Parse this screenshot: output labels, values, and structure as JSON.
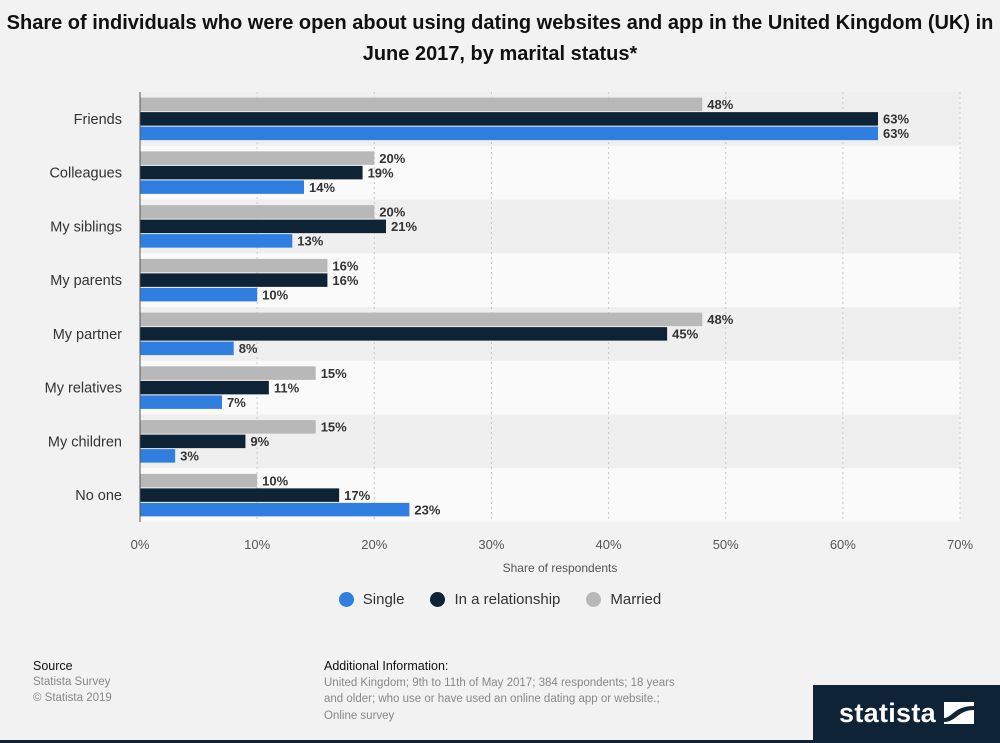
{
  "title": "Share of individuals who were open about using dating websites and app in the United Kingdom (UK) in June 2017, by marital status*",
  "chart_data": {
    "type": "bar",
    "orientation": "horizontal",
    "title": "Share of individuals who were open about using dating websites and app in the United Kingdom (UK) in June 2017, by marital status*",
    "xlabel": "Share of respondents",
    "ylabel": "",
    "xlim": [
      0,
      70
    ],
    "xticks": [
      "0%",
      "10%",
      "20%",
      "30%",
      "40%",
      "50%",
      "60%",
      "70%"
    ],
    "grid": true,
    "legend_position": "bottom",
    "categories": [
      "Friends",
      "Colleagues",
      "My siblings",
      "My parents",
      "My partner",
      "My relatives",
      "My children",
      "No one"
    ],
    "series": [
      {
        "name": "Married",
        "color": "#b8b8b8",
        "values": [
          48,
          20,
          20,
          16,
          48,
          15,
          15,
          10
        ]
      },
      {
        "name": "In a relationship",
        "color": "#0f2336",
        "values": [
          63,
          19,
          21,
          16,
          45,
          11,
          9,
          17
        ]
      },
      {
        "name": "Single",
        "color": "#2f7ee0",
        "values": [
          63,
          14,
          13,
          10,
          8,
          7,
          3,
          23
        ]
      }
    ],
    "value_suffix": "%"
  },
  "legend": [
    {
      "label": "Single",
      "color": "#2f7ee0"
    },
    {
      "label": "In a relationship",
      "color": "#0f2336"
    },
    {
      "label": "Married",
      "color": "#b8b8b8"
    }
  ],
  "footer": {
    "source_heading": "Source",
    "source_lines": [
      "Statista Survey",
      "© Statista 2019"
    ],
    "info_heading": "Additional Information:",
    "info_text": "United Kingdom; 9th to 11th of May 2017; 384 respondents; 18 years and older; who use or have used an online dating app or website.; Online survey"
  },
  "logo": {
    "text": "statista",
    "icon": "statista-flag-icon"
  }
}
